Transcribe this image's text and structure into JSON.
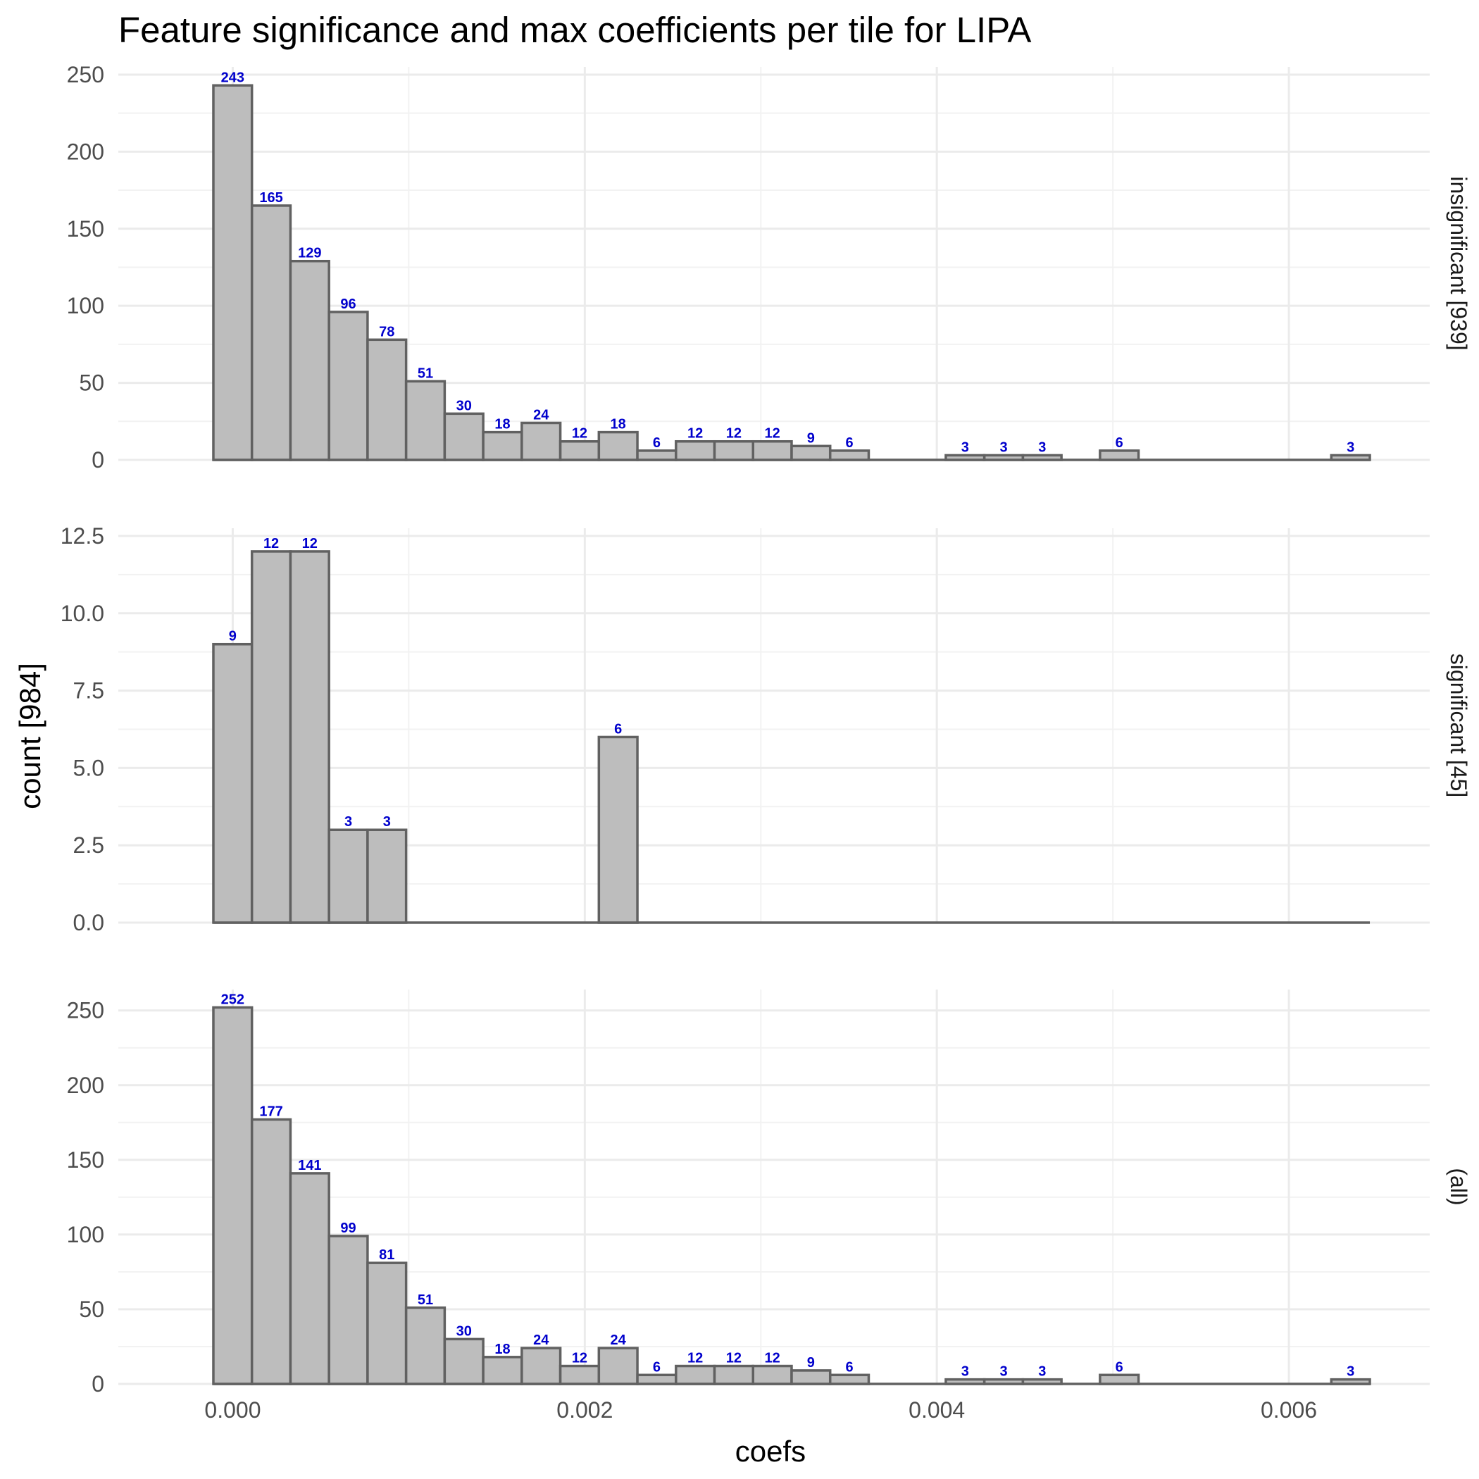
{
  "chart_data": {
    "type": "bar",
    "title": "Feature significance and max coefficients per tile for LIPA",
    "xlabel": "coefs",
    "ylabel": "count [984]",
    "x_ticks": [
      "0.000",
      "0.002",
      "0.004",
      "0.006"
    ],
    "x_tick_values": [
      0,
      0.002,
      0.004,
      0.006
    ],
    "xlim": [
      -0.00065,
      0.0068
    ],
    "bin_width": 0.000219,
    "bin_start": -0.00011,
    "grid": true,
    "label_color": "#0000cc",
    "bar_fill": "#bdbdbd",
    "bar_stroke": "#616161",
    "facets": [
      {
        "strip": "insignificant [939]",
        "ylim": [
          0,
          255
        ],
        "y_ticks": [
          "0",
          "50",
          "100",
          "150",
          "200",
          "250"
        ],
        "y_tick_values": [
          0,
          50,
          100,
          150,
          200,
          250
        ],
        "values": [
          243,
          165,
          129,
          96,
          78,
          51,
          30,
          18,
          24,
          12,
          18,
          6,
          12,
          12,
          12,
          9,
          6,
          0,
          0,
          3,
          3,
          3,
          0,
          6,
          0,
          0,
          0,
          0,
          0,
          3
        ]
      },
      {
        "strip": "significant [45]",
        "ylim": [
          0,
          12.75
        ],
        "y_ticks": [
          "0.0",
          "2.5",
          "5.0",
          "7.5",
          "10.0",
          "12.5"
        ],
        "y_tick_values": [
          0,
          2.5,
          5,
          7.5,
          10,
          12.5
        ],
        "values": [
          9,
          12,
          12,
          3,
          3,
          0,
          0,
          0,
          0,
          0,
          6,
          0,
          0,
          0,
          0,
          0,
          0,
          0,
          0,
          0,
          0,
          0,
          0,
          0,
          0,
          0,
          0,
          0,
          0,
          0
        ]
      },
      {
        "strip": "(all)",
        "ylim": [
          0,
          264
        ],
        "y_ticks": [
          "0",
          "50",
          "100",
          "150",
          "200",
          "250"
        ],
        "y_tick_values": [
          0,
          50,
          100,
          150,
          200,
          250
        ],
        "values": [
          252,
          177,
          141,
          99,
          81,
          51,
          30,
          18,
          24,
          12,
          24,
          6,
          12,
          12,
          12,
          9,
          6,
          0,
          0,
          3,
          3,
          3,
          0,
          6,
          0,
          0,
          0,
          0,
          0,
          3
        ]
      }
    ]
  }
}
